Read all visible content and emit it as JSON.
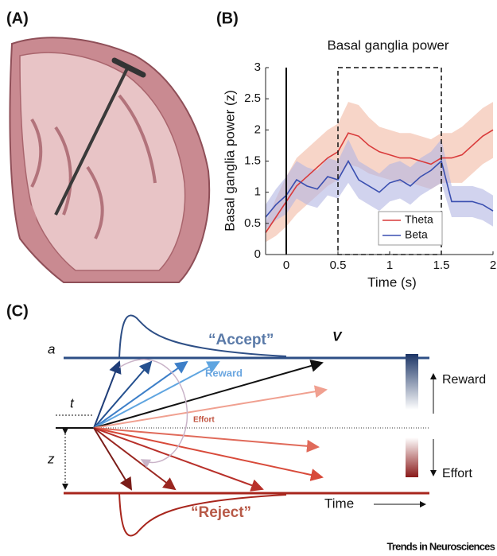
{
  "panels": {
    "a": "(A)",
    "b": "(B)",
    "c": "(C)"
  },
  "chart_data": {
    "type": "line",
    "title": "Basal ganglia power",
    "ylabel": "Basal ganglia power (z)",
    "xlabel": "Time (s)",
    "x": [
      -0.2,
      -0.1,
      0,
      0.1,
      0.2,
      0.3,
      0.4,
      0.5,
      0.6,
      0.7,
      0.8,
      0.9,
      1.0,
      1.1,
      1.2,
      1.3,
      1.4,
      1.5,
      1.6,
      1.7,
      1.8,
      1.9,
      2.0
    ],
    "series": [
      {
        "name": "Theta",
        "color": "#d93a3a",
        "band_color": "#f2b9a3",
        "values": [
          0.35,
          0.6,
          0.85,
          1.1,
          1.25,
          1.4,
          1.55,
          1.65,
          1.95,
          1.9,
          1.75,
          1.65,
          1.6,
          1.55,
          1.55,
          1.5,
          1.45,
          1.55,
          1.55,
          1.6,
          1.75,
          1.9,
          2.0
        ],
        "errors": [
          0.15,
          0.3,
          0.4,
          0.45,
          0.45,
          0.45,
          0.45,
          0.45,
          0.5,
          0.5,
          0.45,
          0.4,
          0.4,
          0.4,
          0.4,
          0.4,
          0.4,
          0.4,
          0.4,
          0.45,
          0.45,
          0.45,
          0.45
        ]
      },
      {
        "name": "Beta",
        "color": "#3a4fb0",
        "band_color": "#b3b6e2",
        "values": [
          0.6,
          0.8,
          0.95,
          1.2,
          1.1,
          1.05,
          1.25,
          1.2,
          1.5,
          1.2,
          1.1,
          1.0,
          1.15,
          1.2,
          1.1,
          1.25,
          1.35,
          1.5,
          0.85,
          0.85,
          0.85,
          0.8,
          0.7
        ],
        "errors": [
          0.2,
          0.25,
          0.3,
          0.3,
          0.3,
          0.3,
          0.3,
          0.3,
          0.35,
          0.3,
          0.3,
          0.3,
          0.3,
          0.3,
          0.3,
          0.3,
          0.3,
          0.35,
          0.25,
          0.25,
          0.25,
          0.25,
          0.25
        ]
      }
    ],
    "xlim": [
      -0.2,
      2
    ],
    "xticks": [
      0,
      0.5,
      1,
      1.5,
      2
    ],
    "ylim": [
      0,
      3
    ],
    "yticks": [
      0,
      0.5,
      1,
      1.5,
      2,
      2.5,
      3
    ],
    "event_line": 0,
    "window": [
      0.5,
      1.5
    ],
    "legend": "lower right"
  },
  "diagram": {
    "a": "a",
    "t": "t",
    "z": "z",
    "accept": "“Accept”",
    "reject": "“Reject”",
    "v": "V",
    "reward": "Reward",
    "effort": "Effort",
    "time": "Time",
    "bar_reward": "Reward",
    "bar_effort": "Effort"
  },
  "footer": "Trends in Neurosciences"
}
